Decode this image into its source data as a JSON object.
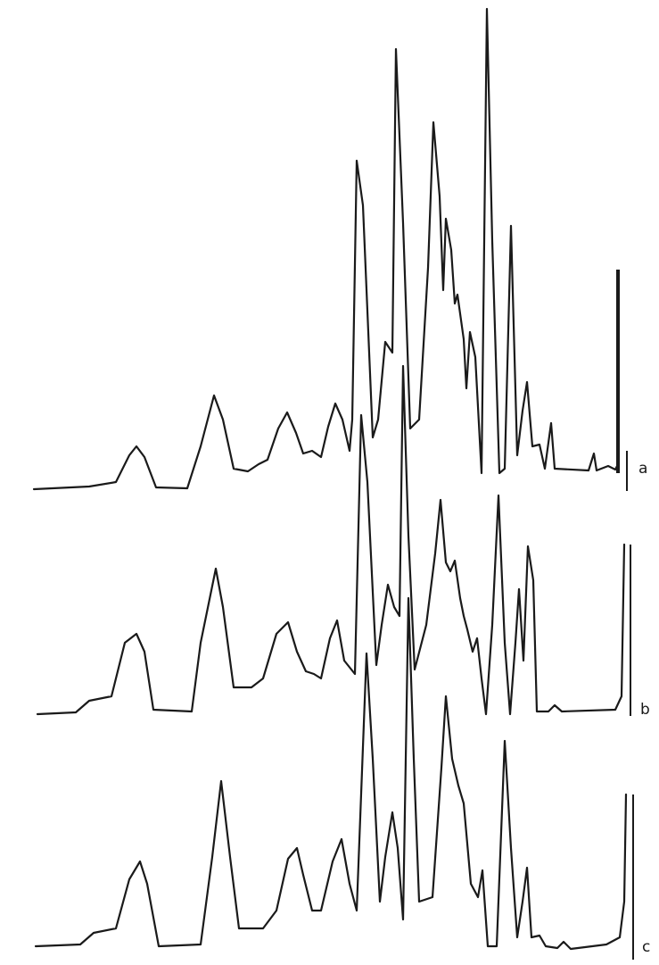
{
  "figure": {
    "labels": [
      "a",
      "b",
      "c"
    ]
  }
}
